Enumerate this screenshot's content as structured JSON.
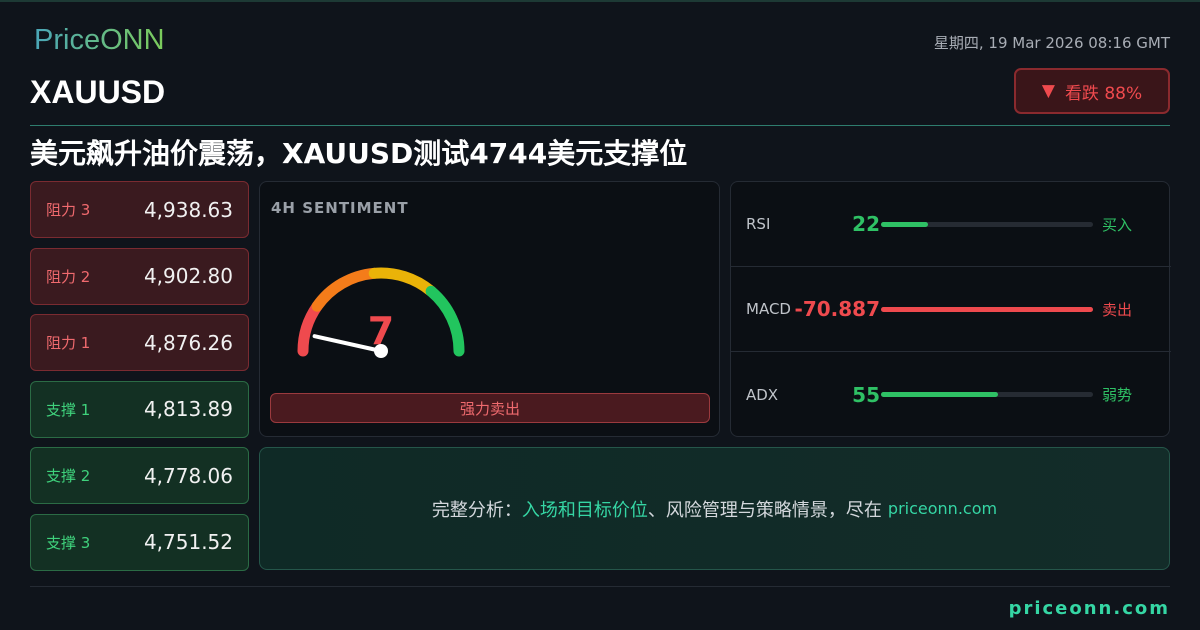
{
  "brand": "PriceONN",
  "datetime": "星期四, 19 Mar 2026 08:16 GMT",
  "symbol": "XAUUSD",
  "bias": {
    "icon": "triangle-down-icon",
    "arrow": "▼",
    "label": "看跌 88%",
    "color": "#ef4a4e"
  },
  "headline": "美元飙升油价震荡，XAUUSD测试4744美元支撑位",
  "levels": [
    {
      "label": "阻力 3",
      "value": "4,938.63",
      "type": "resistance"
    },
    {
      "label": "阻力 2",
      "value": "4,902.80",
      "type": "resistance"
    },
    {
      "label": "阻力 1",
      "value": "4,876.26",
      "type": "resistance"
    },
    {
      "label": "支撑 1",
      "value": "4,813.89",
      "type": "support"
    },
    {
      "label": "支撑 2",
      "value": "4,778.06",
      "type": "support"
    },
    {
      "label": "支撑 3",
      "value": "4,751.52",
      "type": "support"
    }
  ],
  "sentiment": {
    "title": "4H SENTIMENT",
    "value": "7",
    "scale_max": 100,
    "label": "强力卖出"
  },
  "indicators": [
    {
      "name": "RSI",
      "value": "22",
      "fill": 0.22,
      "signal": "买入",
      "color": "#2fc165"
    },
    {
      "name": "MACD",
      "value": "-70.887",
      "fill": 1.0,
      "signal": "卖出",
      "color": "#ef4a4e"
    },
    {
      "name": "ADX",
      "value": "55",
      "fill": 0.55,
      "signal": "弱势",
      "color": "#2fc165"
    }
  ],
  "cta": {
    "prefix": "完整分析：",
    "highlight": "入场和目标价位",
    "rest": "、风险管理与策略情景，尽在",
    "url": "priceonn.com"
  },
  "footer": {
    "site": "priceonn.com"
  }
}
